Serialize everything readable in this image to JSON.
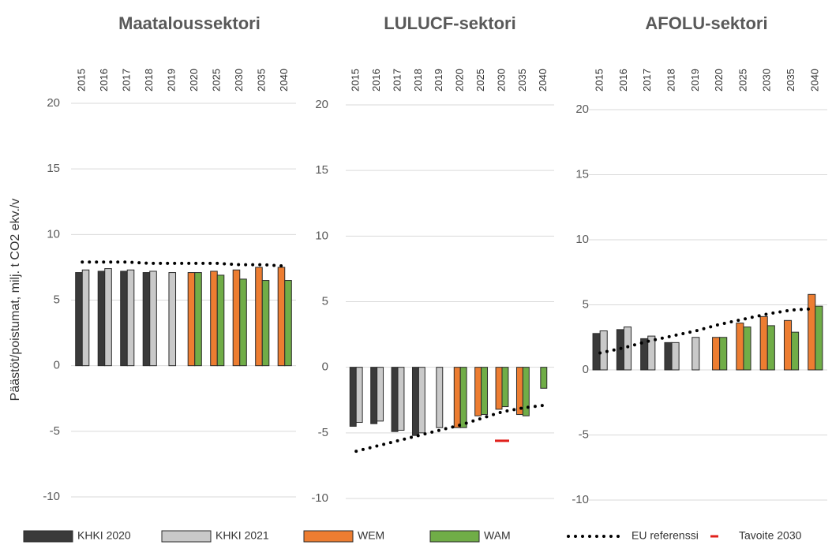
{
  "y_label": "Päästöt/poistumat, milj. t CO2 ekv./v",
  "chart_data": [
    {
      "type": "bar",
      "title": "Maataloussektori",
      "categories": [
        "2015",
        "2016",
        "2017",
        "2018",
        "2019",
        "2020",
        "2025",
        "2030",
        "2035",
        "2040"
      ],
      "ylim": [
        -10,
        20
      ],
      "yticks": [
        -10,
        -5,
        0,
        5,
        10,
        15,
        20
      ],
      "grid": true,
      "series": [
        {
          "name": "KHKI 2020",
          "type": "bar",
          "color": "#3a3a3a",
          "values": [
            7.1,
            7.2,
            7.2,
            7.1,
            null,
            null,
            null,
            null,
            null,
            null
          ]
        },
        {
          "name": "KHKI 2021",
          "type": "bar",
          "color": "#c9c9c9",
          "values": [
            7.3,
            7.4,
            7.3,
            7.2,
            7.1,
            null,
            null,
            null,
            null,
            null
          ]
        },
        {
          "name": "WEM",
          "type": "bar",
          "color": "#ed7d31",
          "values": [
            null,
            null,
            null,
            null,
            null,
            7.1,
            7.2,
            7.3,
            7.5,
            7.5
          ]
        },
        {
          "name": "WAM",
          "type": "bar",
          "color": "#70ad47",
          "values": [
            null,
            null,
            null,
            null,
            null,
            7.1,
            6.9,
            6.6,
            6.5,
            6.5
          ]
        },
        {
          "name": "EU referenssi",
          "type": "line",
          "color": "#000000",
          "values": [
            7.9,
            7.9,
            7.9,
            7.8,
            7.8,
            7.8,
            7.8,
            7.7,
            7.7,
            7.6
          ]
        },
        {
          "name": "Tavoite 2030",
          "type": "marker",
          "color": "#e0201b",
          "values": [
            null,
            null,
            null,
            null,
            null,
            null,
            null,
            null,
            null,
            null
          ]
        }
      ]
    },
    {
      "type": "bar",
      "title": "LULUCF-sektori",
      "categories": [
        "2015",
        "2016",
        "2017",
        "2018",
        "2019",
        "2020",
        "2025",
        "2030",
        "2035",
        "2040"
      ],
      "ylim": [
        -10,
        20
      ],
      "yticks": [
        -10,
        -5,
        0,
        5,
        10,
        15,
        20
      ],
      "grid": true,
      "series": [
        {
          "name": "KHKI 2020",
          "type": "bar",
          "color": "#3a3a3a",
          "values": [
            -4.5,
            -4.3,
            -4.9,
            -5.2,
            null,
            null,
            null,
            null,
            null,
            null
          ]
        },
        {
          "name": "KHKI 2021",
          "type": "bar",
          "color": "#c9c9c9",
          "values": [
            -4.2,
            -4.1,
            -4.8,
            -5.0,
            -4.6,
            null,
            null,
            null,
            null,
            null
          ]
        },
        {
          "name": "WEM",
          "type": "bar",
          "color": "#ed7d31",
          "values": [
            null,
            null,
            null,
            null,
            null,
            -4.6,
            -3.7,
            -3.2,
            -3.6,
            null
          ]
        },
        {
          "name": "WAM",
          "type": "bar",
          "color": "#70ad47",
          "values": [
            null,
            null,
            null,
            null,
            null,
            -4.6,
            -3.6,
            -3.0,
            -3.7,
            -1.6
          ]
        },
        {
          "name": "EU referenssi",
          "type": "line",
          "color": "#000000",
          "values": [
            -6.4,
            -6.0,
            -5.6,
            -5.2,
            -4.8,
            -4.4,
            -3.9,
            -3.4,
            -3.1,
            -2.9
          ]
        },
        {
          "name": "Tavoite 2030",
          "type": "marker",
          "color": "#e0201b",
          "values": [
            null,
            null,
            null,
            null,
            null,
            null,
            null,
            -5.6,
            null,
            null
          ]
        }
      ]
    },
    {
      "type": "bar",
      "title": "AFOLU-sektori",
      "categories": [
        "2015",
        "2016",
        "2017",
        "2018",
        "2019",
        "2020",
        "2025",
        "2030",
        "2035",
        "2040"
      ],
      "ylim": [
        -10,
        20
      ],
      "yticks": [
        -10,
        -5,
        0,
        5,
        10,
        15,
        20
      ],
      "grid": true,
      "series": [
        {
          "name": "KHKI 2020",
          "type": "bar",
          "color": "#3a3a3a",
          "values": [
            2.8,
            3.1,
            2.4,
            2.1,
            null,
            null,
            null,
            null,
            null,
            null
          ]
        },
        {
          "name": "KHKI 2021",
          "type": "bar",
          "color": "#c9c9c9",
          "values": [
            3.0,
            3.3,
            2.6,
            2.1,
            2.5,
            null,
            null,
            null,
            null,
            null
          ]
        },
        {
          "name": "WEM",
          "type": "bar",
          "color": "#ed7d31",
          "values": [
            null,
            null,
            null,
            null,
            null,
            2.5,
            3.6,
            4.1,
            3.8,
            5.8
          ]
        },
        {
          "name": "WAM",
          "type": "bar",
          "color": "#70ad47",
          "values": [
            null,
            null,
            null,
            null,
            null,
            2.5,
            3.3,
            3.4,
            2.9,
            4.9
          ]
        },
        {
          "name": "EU referenssi",
          "type": "line",
          "color": "#000000",
          "values": [
            1.3,
            1.7,
            2.2,
            2.6,
            3.0,
            3.5,
            3.9,
            4.3,
            4.6,
            4.7
          ]
        },
        {
          "name": "Tavoite 2030",
          "type": "marker",
          "color": "#e0201b",
          "values": [
            null,
            null,
            null,
            null,
            null,
            null,
            null,
            null,
            null,
            null
          ]
        }
      ]
    }
  ]
}
